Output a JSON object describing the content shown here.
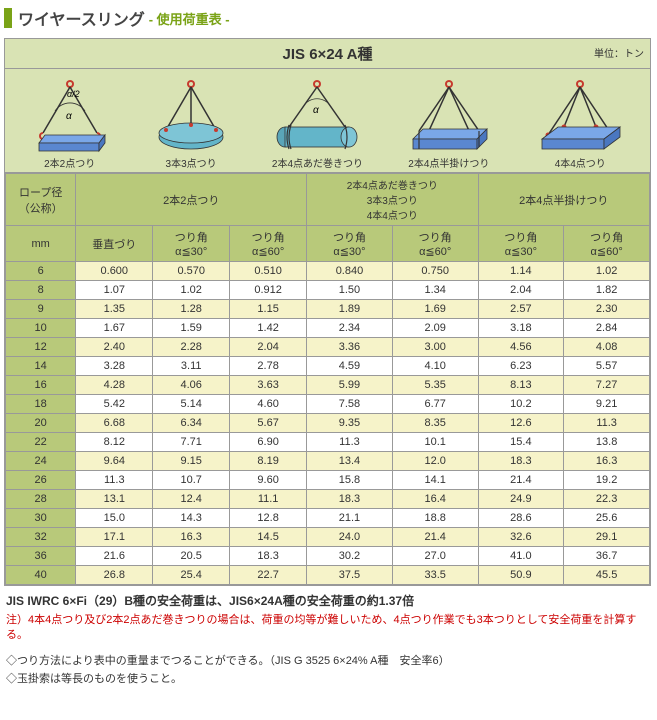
{
  "title": {
    "main": "ワイヤースリング",
    "sub": "- 使用荷重表 -"
  },
  "header": {
    "title": "JIS 6×24  A種",
    "unit": "単位：トン"
  },
  "illus_labels": [
    "2本2点つり",
    "3本3点つり",
    "2本4点あだ巻きつり",
    "2本4点半掛けつり",
    "4本4点つり"
  ],
  "colors": {
    "hook": "#c73a2e",
    "load_blue": "#7aa7e8",
    "load_cyan": "#63b5c9",
    "rope": "#333"
  },
  "columns": {
    "rope_hdr": "ロープ径\n（公称）",
    "rope_unit": "mm",
    "group1": "2本2点つり",
    "group2": "2本4点あだ巻きつり\n3本3点つり\n4本4点つり",
    "group3": "2本4点半掛けつり",
    "sub": [
      "垂直づり",
      "つり角\nα≦30°",
      "つり角\nα≦60°",
      "つり角\nα≦30°",
      "つり角\nα≦60°",
      "つり角\nα≦30°",
      "つり角\nα≦60°"
    ]
  },
  "rows": [
    {
      "d": "6",
      "v": [
        "0.600",
        "0.570",
        "0.510",
        "0.840",
        "0.750",
        "1.14",
        "1.02"
      ]
    },
    {
      "d": "8",
      "v": [
        "1.07",
        "1.02",
        "0.912",
        "1.50",
        "1.34",
        "2.04",
        "1.82"
      ]
    },
    {
      "d": "9",
      "v": [
        "1.35",
        "1.28",
        "1.15",
        "1.89",
        "1.69",
        "2.57",
        "2.30"
      ]
    },
    {
      "d": "10",
      "v": [
        "1.67",
        "1.59",
        "1.42",
        "2.34",
        "2.09",
        "3.18",
        "2.84"
      ]
    },
    {
      "d": "12",
      "v": [
        "2.40",
        "2.28",
        "2.04",
        "3.36",
        "3.00",
        "4.56",
        "4.08"
      ]
    },
    {
      "d": "14",
      "v": [
        "3.28",
        "3.11",
        "2.78",
        "4.59",
        "4.10",
        "6.23",
        "5.57"
      ]
    },
    {
      "d": "16",
      "v": [
        "4.28",
        "4.06",
        "3.63",
        "5.99",
        "5.35",
        "8.13",
        "7.27"
      ]
    },
    {
      "d": "18",
      "v": [
        "5.42",
        "5.14",
        "4.60",
        "7.58",
        "6.77",
        "10.2",
        "9.21"
      ]
    },
    {
      "d": "20",
      "v": [
        "6.68",
        "6.34",
        "5.67",
        "9.35",
        "8.35",
        "12.6",
        "11.3"
      ]
    },
    {
      "d": "22",
      "v": [
        "8.12",
        "7.71",
        "6.90",
        "11.3",
        "10.1",
        "15.4",
        "13.8"
      ]
    },
    {
      "d": "24",
      "v": [
        "9.64",
        "9.15",
        "8.19",
        "13.4",
        "12.0",
        "18.3",
        "16.3"
      ]
    },
    {
      "d": "26",
      "v": [
        "11.3",
        "10.7",
        "9.60",
        "15.8",
        "14.1",
        "21.4",
        "19.2"
      ]
    },
    {
      "d": "28",
      "v": [
        "13.1",
        "12.4",
        "11.1",
        "18.3",
        "16.4",
        "24.9",
        "22.3"
      ]
    },
    {
      "d": "30",
      "v": [
        "15.0",
        "14.3",
        "12.8",
        "21.1",
        "18.8",
        "28.6",
        "25.6"
      ]
    },
    {
      "d": "32",
      "v": [
        "17.1",
        "16.3",
        "14.5",
        "24.0",
        "21.4",
        "32.6",
        "29.1"
      ]
    },
    {
      "d": "36",
      "v": [
        "21.6",
        "20.5",
        "18.3",
        "30.2",
        "27.0",
        "41.0",
        "36.7"
      ]
    },
    {
      "d": "40",
      "v": [
        "26.8",
        "25.4",
        "22.7",
        "37.5",
        "33.5",
        "50.9",
        "45.5"
      ]
    }
  ],
  "notes": {
    "bold": "JIS IWRC 6×Fi（29）B種の安全荷重は、JIS6×24A種の安全荷重の約1.37倍",
    "red": "注）4本4点つり及び2本2点あだ巻きつりの場合は、荷重の均等が難しいため、4点つり作業でも3本つりとして安全荷重を計算する。",
    "p1": "◇つり方法により表中の重量までつることができる。（JIS G 3525 6×24% A種　安全率6）",
    "p2": "◇玉掛索は等長のものを使うこと。"
  }
}
